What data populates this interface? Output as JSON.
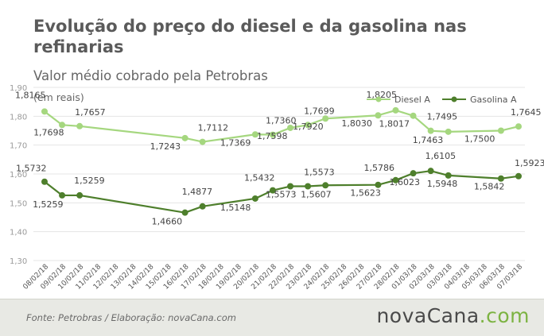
{
  "title": "Evolução do preço do diesel e da gasolina nas refinarias",
  "subtitle": "Valor médio cobrado pela Petrobras",
  "footer": {
    "source": "Fonte:  Petrobras  / Elaboração:  novaCana.com",
    "brand_main": "novaCana",
    "brand_suffix": ".com"
  },
  "colors": {
    "diesel": "#a5d77f",
    "gasolina": "#4e7f2c",
    "grid": "#e4e4e4",
    "text": "#555555",
    "brand_accent": "#7cb342"
  },
  "chart_data": {
    "type": "line",
    "unit_label": "(em reais)",
    "categories": [
      "08/02/18",
      "09/02/18",
      "10/02/18",
      "11/02/18",
      "12/02/18",
      "13/02/18",
      "14/02/18",
      "15/02/18",
      "16/02/18",
      "17/02/18",
      "18/02/18",
      "19/02/18",
      "20/02/18",
      "21/02/18",
      "22/02/18",
      "23/02/18",
      "24/02/18",
      "25/02/18",
      "26/02/18",
      "27/02/18",
      "28/02/18",
      "01/03/18",
      "02/03/18",
      "03/03/18",
      "04/03/18",
      "05/03/18",
      "06/03/18",
      "07/03/18"
    ],
    "yticks": [
      "1,30",
      "1,40",
      "1,50",
      "1,60",
      "1,70",
      "1,80",
      "1,90"
    ],
    "ylim": [
      1.3,
      1.9
    ],
    "grid": true,
    "legend_position": "top-right",
    "series": [
      {
        "name": "Diesel A",
        "points": [
          {
            "x": "08/02/18",
            "y": 1.8165,
            "label": "1,8165"
          },
          {
            "x": "09/02/18",
            "y": 1.7698,
            "label": "1,7698"
          },
          {
            "x": "10/02/18",
            "y": 1.7657,
            "label": "1,7657"
          },
          {
            "x": "16/02/18",
            "y": 1.7243,
            "label": "1,7243"
          },
          {
            "x": "17/02/18",
            "y": 1.7112,
            "label": "1,7112"
          },
          {
            "x": "20/02/18",
            "y": 1.7369,
            "label": "1,7369"
          },
          {
            "x": "21/02/18",
            "y": 1.736,
            "label": "1,7360"
          },
          {
            "x": "22/02/18",
            "y": 1.7598,
            "label": "1,7598"
          },
          {
            "x": "23/02/18",
            "y": 1.7699,
            "label": "1,7699"
          },
          {
            "x": "24/02/18",
            "y": 1.792,
            "label": "1,7920"
          },
          {
            "x": "27/02/18",
            "y": 1.803,
            "label": "1,8030"
          },
          {
            "x": "28/02/18",
            "y": 1.8205,
            "label": "1,8205"
          },
          {
            "x": "01/03/18",
            "y": 1.8017,
            "label": "1,8017"
          },
          {
            "x": "02/03/18",
            "y": 1.7495,
            "label": "1,7495"
          },
          {
            "x": "03/03/18",
            "y": 1.7463,
            "label": "1,7463"
          },
          {
            "x": "06/03/18",
            "y": 1.75,
            "label": "1,7500"
          },
          {
            "x": "07/03/18",
            "y": 1.7645,
            "label": "1,7645"
          }
        ]
      },
      {
        "name": "Gasolina A",
        "points": [
          {
            "x": "08/02/18",
            "y": 1.5732,
            "label": "1,5732"
          },
          {
            "x": "09/02/18",
            "y": 1.5259,
            "label": "1,5259"
          },
          {
            "x": "10/02/18",
            "y": 1.5259,
            "label": "1,5259"
          },
          {
            "x": "16/02/18",
            "y": 1.466,
            "label": "1,4660"
          },
          {
            "x": "17/02/18",
            "y": 1.4877,
            "label": "1,4877"
          },
          {
            "x": "20/02/18",
            "y": 1.5148,
            "label": "1,5148"
          },
          {
            "x": "21/02/18",
            "y": 1.5432,
            "label": "1,5432"
          },
          {
            "x": "22/02/18",
            "y": 1.5573,
            "label": "1,5573"
          },
          {
            "x": "23/02/18",
            "y": 1.5573,
            "label": "1,5573"
          },
          {
            "x": "24/02/18",
            "y": 1.5607,
            "label": "1,5607"
          },
          {
            "x": "27/02/18",
            "y": 1.5623,
            "label": "1,5623"
          },
          {
            "x": "28/02/18",
            "y": 1.5786,
            "label": "1,5786"
          },
          {
            "x": "01/03/18",
            "y": 1.6023,
            "label": "1,6023"
          },
          {
            "x": "02/03/18",
            "y": 1.6105,
            "label": "1,6105"
          },
          {
            "x": "03/03/18",
            "y": 1.5948,
            "label": "1,5948"
          },
          {
            "x": "06/03/18",
            "y": 1.5842,
            "label": "1,5842"
          },
          {
            "x": "07/03/18",
            "y": 1.5923,
            "label": "1,5923"
          }
        ]
      }
    ]
  }
}
